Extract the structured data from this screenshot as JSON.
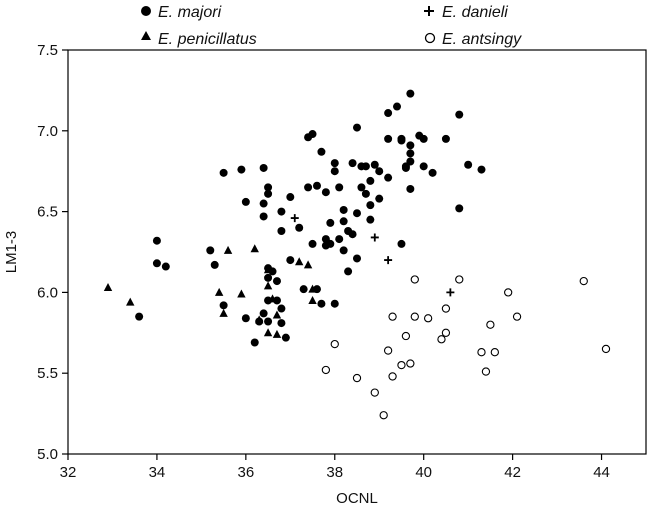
{
  "chart_data": {
    "type": "scatter",
    "title": "",
    "xlabel": "OCNL",
    "ylabel": "LM1-3",
    "xlim": [
      32,
      45
    ],
    "ylim": [
      5.0,
      7.5
    ],
    "x_ticks": [
      32,
      34,
      36,
      38,
      40,
      42,
      44
    ],
    "y_ticks": [
      5.0,
      5.5,
      6.0,
      6.5,
      7.0,
      7.5
    ],
    "x_tick_labels": [
      "32",
      "34",
      "36",
      "38",
      "40",
      "42",
      "44"
    ],
    "y_tick_labels": [
      "5.0",
      "5.5",
      "6.0",
      "6.5",
      "7.0",
      "7.5"
    ],
    "grid": false,
    "legend_position": "top",
    "series": [
      {
        "name": "E. majori",
        "marker": "filled-circle",
        "points": [
          [
            33.6,
            5.85
          ],
          [
            34.0,
            6.32
          ],
          [
            34.0,
            6.18
          ],
          [
            34.2,
            6.16
          ],
          [
            35.2,
            6.26
          ],
          [
            35.3,
            6.17
          ],
          [
            35.5,
            6.74
          ],
          [
            35.9,
            6.76
          ],
          [
            36.0,
            6.56
          ],
          [
            35.5,
            5.92
          ],
          [
            36.0,
            5.84
          ],
          [
            36.2,
            5.69
          ],
          [
            36.4,
            6.77
          ],
          [
            36.4,
            6.55
          ],
          [
            36.5,
            6.65
          ],
          [
            36.5,
            6.61
          ],
          [
            36.4,
            6.47
          ],
          [
            36.5,
            6.15
          ],
          [
            36.6,
            6.13
          ],
          [
            36.5,
            6.09
          ],
          [
            36.7,
            6.07
          ],
          [
            36.5,
            5.95
          ],
          [
            36.7,
            5.95
          ],
          [
            36.8,
            5.9
          ],
          [
            36.4,
            5.87
          ],
          [
            36.5,
            5.82
          ],
          [
            36.3,
            5.82
          ],
          [
            36.8,
            5.81
          ],
          [
            36.9,
            5.72
          ],
          [
            36.8,
            6.38
          ],
          [
            36.8,
            6.5
          ],
          [
            37.0,
            6.59
          ],
          [
            37.0,
            6.2
          ],
          [
            37.2,
            6.4
          ],
          [
            37.3,
            6.02
          ],
          [
            37.4,
            6.65
          ],
          [
            37.4,
            6.96
          ],
          [
            37.5,
            6.98
          ],
          [
            37.5,
            6.3
          ],
          [
            37.6,
            6.02
          ],
          [
            37.7,
            5.93
          ],
          [
            37.6,
            6.66
          ],
          [
            37.7,
            6.87
          ],
          [
            37.8,
            6.33
          ],
          [
            37.8,
            6.29
          ],
          [
            37.9,
            6.43
          ],
          [
            37.9,
            6.3
          ],
          [
            37.8,
            6.62
          ],
          [
            38.0,
            6.75
          ],
          [
            38.0,
            5.93
          ],
          [
            38.1,
            6.65
          ],
          [
            38.0,
            6.8
          ],
          [
            38.1,
            6.33
          ],
          [
            38.2,
            6.51
          ],
          [
            38.2,
            6.44
          ],
          [
            38.3,
            6.38
          ],
          [
            38.2,
            6.26
          ],
          [
            38.3,
            6.13
          ],
          [
            38.4,
            6.8
          ],
          [
            38.4,
            6.36
          ],
          [
            38.5,
            6.21
          ],
          [
            38.5,
            6.49
          ],
          [
            38.5,
            7.02
          ],
          [
            38.6,
            6.78
          ],
          [
            38.6,
            6.65
          ],
          [
            38.7,
            6.61
          ],
          [
            38.7,
            6.78
          ],
          [
            38.8,
            6.69
          ],
          [
            38.8,
            6.54
          ],
          [
            38.8,
            6.45
          ],
          [
            38.9,
            6.79
          ],
          [
            39.0,
            6.58
          ],
          [
            39.0,
            6.75
          ],
          [
            39.2,
            6.95
          ],
          [
            39.2,
            6.71
          ],
          [
            39.2,
            7.11
          ],
          [
            39.4,
            7.15
          ],
          [
            39.5,
            6.95
          ],
          [
            39.5,
            6.3
          ],
          [
            39.5,
            6.94
          ],
          [
            39.6,
            6.78
          ],
          [
            39.6,
            6.77
          ],
          [
            39.7,
            6.64
          ],
          [
            39.7,
            6.81
          ],
          [
            39.7,
            6.91
          ],
          [
            39.7,
            7.23
          ],
          [
            39.7,
            6.86
          ],
          [
            39.9,
            6.97
          ],
          [
            40.0,
            6.95
          ],
          [
            40.0,
            6.78
          ],
          [
            40.2,
            6.74
          ],
          [
            40.5,
            6.95
          ],
          [
            40.8,
            7.1
          ],
          [
            40.8,
            6.52
          ],
          [
            41.0,
            6.79
          ],
          [
            41.3,
            6.76
          ]
        ]
      },
      {
        "name": "E. danieli",
        "marker": "plus",
        "points": [
          [
            37.1,
            6.46
          ],
          [
            38.9,
            6.34
          ],
          [
            39.2,
            6.2
          ],
          [
            40.6,
            6.0
          ]
        ]
      },
      {
        "name": "E. penicillatus",
        "marker": "filled-triangle",
        "points": [
          [
            32.9,
            6.03
          ],
          [
            33.4,
            5.94
          ],
          [
            35.4,
            6.0
          ],
          [
            35.6,
            6.26
          ],
          [
            35.9,
            5.99
          ],
          [
            35.5,
            5.87
          ],
          [
            36.2,
            6.27
          ],
          [
            36.5,
            6.04
          ],
          [
            36.5,
            6.14
          ],
          [
            36.6,
            5.96
          ],
          [
            36.3,
            5.83
          ],
          [
            36.5,
            5.75
          ],
          [
            36.7,
            5.86
          ],
          [
            36.7,
            5.74
          ],
          [
            37.2,
            6.19
          ],
          [
            37.4,
            6.17
          ],
          [
            37.5,
            6.02
          ],
          [
            37.5,
            5.95
          ]
        ]
      },
      {
        "name": "E. antsingy",
        "marker": "open-circle",
        "points": [
          [
            37.8,
            5.52
          ],
          [
            38.0,
            5.68
          ],
          [
            38.5,
            5.47
          ],
          [
            38.9,
            5.38
          ],
          [
            39.1,
            5.24
          ],
          [
            39.2,
            5.64
          ],
          [
            39.3,
            5.48
          ],
          [
            39.3,
            5.85
          ],
          [
            39.5,
            5.55
          ],
          [
            39.6,
            5.73
          ],
          [
            39.7,
            5.56
          ],
          [
            39.8,
            6.08
          ],
          [
            39.8,
            5.85
          ],
          [
            40.1,
            5.84
          ],
          [
            40.4,
            5.71
          ],
          [
            40.5,
            5.75
          ],
          [
            40.5,
            5.9
          ],
          [
            40.8,
            6.08
          ],
          [
            41.3,
            5.63
          ],
          [
            41.4,
            5.51
          ],
          [
            41.5,
            5.8
          ],
          [
            41.6,
            5.63
          ],
          [
            41.9,
            6.0
          ],
          [
            42.1,
            5.85
          ],
          [
            43.6,
            6.07
          ],
          [
            44.1,
            5.65
          ]
        ]
      }
    ]
  }
}
